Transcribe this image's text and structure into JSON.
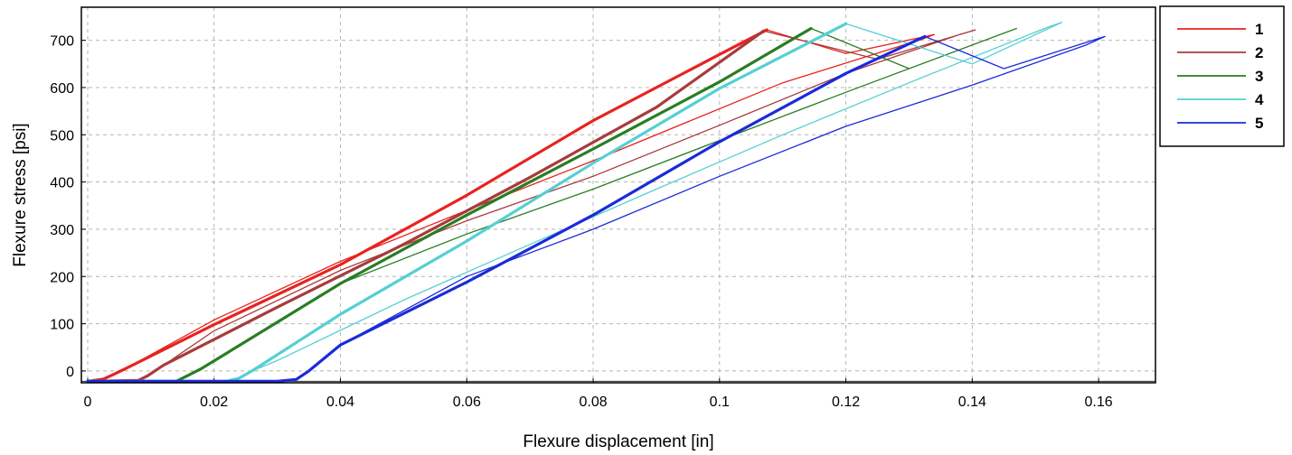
{
  "chart_data": {
    "type": "line",
    "title": "",
    "xlabel": "Flexure displacement [in]",
    "ylabel": "Flexure stress [psi]",
    "xlim": [
      -0.001,
      0.169
    ],
    "ylim": [
      -25,
      770
    ],
    "xticks": [
      0,
      0.02,
      0.04,
      0.06,
      0.08,
      0.1,
      0.12,
      0.14,
      0.16
    ],
    "xtick_labels": [
      "0",
      "0.02",
      "0.04",
      "0.06",
      "0.08",
      "0.1",
      "0.12",
      "0.14",
      "0.16"
    ],
    "yticks": [
      0,
      100,
      200,
      300,
      400,
      500,
      600,
      700
    ],
    "ytick_labels": [
      "0",
      "100",
      "200",
      "300",
      "400",
      "500",
      "600",
      "700"
    ],
    "grid": true,
    "legend_position": "outside-right-top",
    "series": [
      {
        "name": "1",
        "color": "#e8231f",
        "loading": [
          [
            0,
            -22
          ],
          [
            0.0025,
            -17
          ],
          [
            0.004,
            -8
          ],
          [
            0.006,
            5
          ],
          [
            0.02,
            98
          ],
          [
            0.04,
            225
          ],
          [
            0.06,
            372
          ],
          [
            0.08,
            530
          ],
          [
            0.1,
            670
          ],
          [
            0.1075,
            722
          ]
        ],
        "unloading": [
          [
            0.1075,
            722
          ],
          [
            0.12,
            672
          ],
          [
            0.134,
            712
          ],
          [
            0.132,
            702
          ],
          [
            0.11,
            610
          ],
          [
            0.08,
            445
          ],
          [
            0.06,
            340
          ],
          [
            0.04,
            232
          ],
          [
            0.02,
            108
          ],
          [
            0.006,
            5
          ]
        ]
      },
      {
        "name": "2",
        "color": "#a83b3b",
        "loading": [
          [
            0,
            -22
          ],
          [
            0.008,
            -20
          ],
          [
            0.0095,
            -10
          ],
          [
            0.012,
            12
          ],
          [
            0.03,
            135
          ],
          [
            0.05,
            268
          ],
          [
            0.07,
            410
          ],
          [
            0.09,
            558
          ],
          [
            0.107,
            720
          ]
        ],
        "unloading": [
          [
            0.107,
            720
          ],
          [
            0.125,
            660
          ],
          [
            0.1405,
            722
          ],
          [
            0.138,
            712
          ],
          [
            0.12,
            630
          ],
          [
            0.1,
            520
          ],
          [
            0.08,
            412
          ],
          [
            0.06,
            318
          ],
          [
            0.04,
            213
          ],
          [
            0.02,
            85
          ],
          [
            0.012,
            12
          ]
        ]
      },
      {
        "name": "3",
        "color": "#2a7d23",
        "loading": [
          [
            0,
            -22
          ],
          [
            0.014,
            -22
          ],
          [
            0.0155,
            -12
          ],
          [
            0.018,
            5
          ],
          [
            0.04,
            185
          ],
          [
            0.06,
            330
          ],
          [
            0.08,
            470
          ],
          [
            0.1,
            612
          ],
          [
            0.1145,
            725
          ]
        ],
        "unloading": [
          [
            0.1145,
            725
          ],
          [
            0.13,
            640
          ],
          [
            0.147,
            725
          ],
          [
            0.145,
            715
          ],
          [
            0.12,
            590
          ],
          [
            0.1,
            488
          ],
          [
            0.08,
            385
          ],
          [
            0.06,
            290
          ],
          [
            0.04,
            185
          ],
          [
            0.018,
            5
          ]
        ]
      },
      {
        "name": "4",
        "color": "#55cfd4",
        "loading": [
          [
            0,
            -22
          ],
          [
            0.022,
            -22
          ],
          [
            0.024,
            -15
          ],
          [
            0.026,
            0
          ],
          [
            0.04,
            120
          ],
          [
            0.06,
            275
          ],
          [
            0.08,
            440
          ],
          [
            0.1,
            598
          ],
          [
            0.12,
            735
          ]
        ],
        "unloading": [
          [
            0.12,
            735
          ],
          [
            0.14,
            650
          ],
          [
            0.1542,
            738
          ],
          [
            0.152,
            728
          ],
          [
            0.13,
            610
          ],
          [
            0.11,
            500
          ],
          [
            0.09,
            385
          ],
          [
            0.07,
            268
          ],
          [
            0.05,
            150
          ],
          [
            0.03,
            22
          ],
          [
            0.026,
            0
          ]
        ]
      },
      {
        "name": "5",
        "color": "#1a2bd9",
        "loading": [
          [
            0,
            -22
          ],
          [
            0.03,
            -22
          ],
          [
            0.033,
            -18
          ],
          [
            0.035,
            0
          ],
          [
            0.04,
            55
          ],
          [
            0.06,
            188
          ],
          [
            0.08,
            330
          ],
          [
            0.1,
            485
          ],
          [
            0.12,
            630
          ],
          [
            0.1325,
            708
          ]
        ],
        "unloading": [
          [
            0.1325,
            708
          ],
          [
            0.145,
            640
          ],
          [
            0.161,
            708
          ],
          [
            0.158,
            690
          ],
          [
            0.14,
            605
          ],
          [
            0.12,
            518
          ],
          [
            0.1,
            412
          ],
          [
            0.08,
            300
          ],
          [
            0.06,
            200
          ],
          [
            0.04,
            55
          ]
        ]
      }
    ]
  }
}
